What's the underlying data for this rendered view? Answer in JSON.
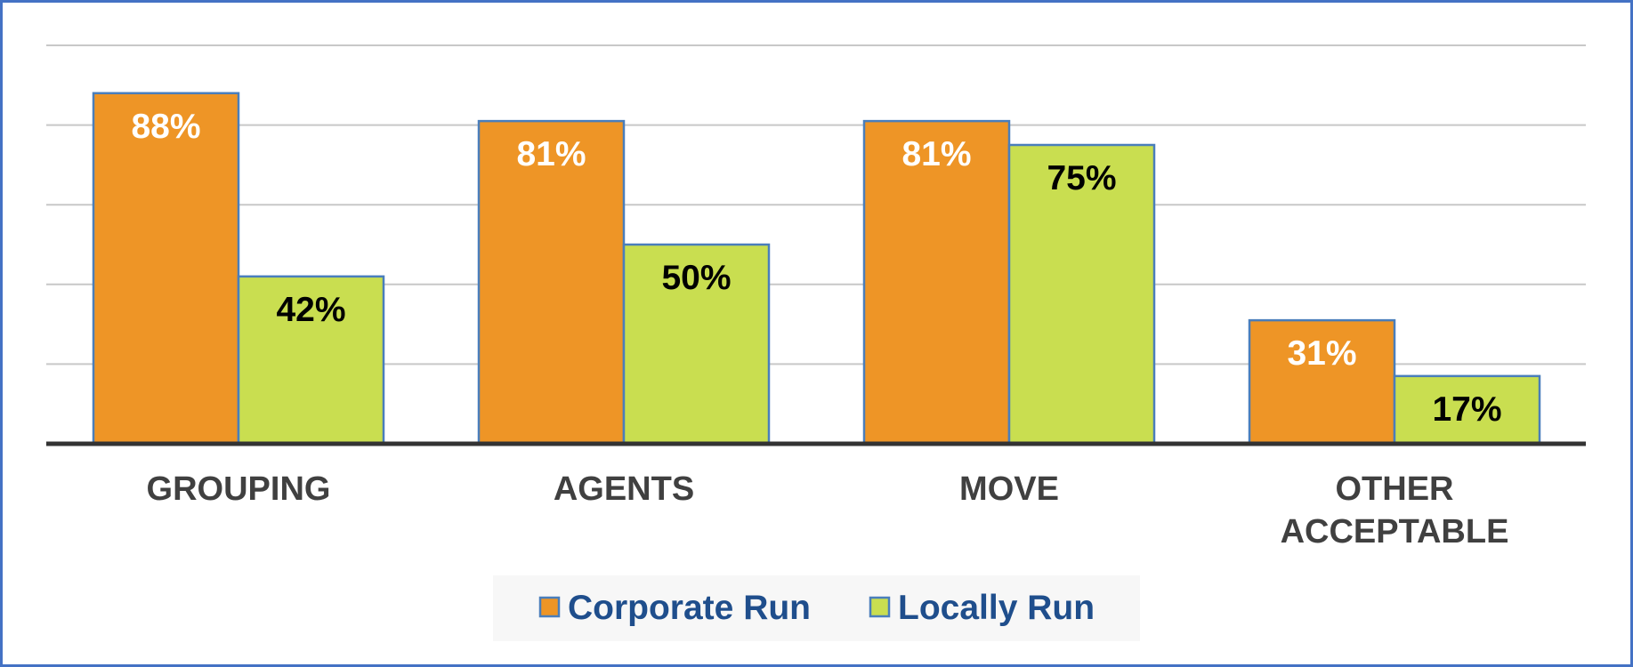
{
  "chart_data": {
    "type": "bar",
    "categories": [
      [
        "GROUPING"
      ],
      [
        "AGENTS"
      ],
      [
        "MOVE"
      ],
      [
        "OTHER",
        "ACCEPTABLE"
      ]
    ],
    "series": [
      {
        "name": "Corporate Run",
        "values": [
          88,
          81,
          81,
          31
        ],
        "labels": [
          "88%",
          "81%",
          "81%",
          "31%"
        ],
        "color": "#ee9526",
        "label_color": "#ffffff"
      },
      {
        "name": "Locally Run",
        "values": [
          42,
          50,
          75,
          17
        ],
        "labels": [
          "42%",
          "50%",
          "75%",
          "17%"
        ],
        "color": "#c9de50",
        "label_color": "#000000"
      }
    ],
    "ylim": [
      0,
      100
    ],
    "gridlines": [
      20,
      40,
      60,
      80,
      100
    ],
    "grid": true,
    "legend_position": "bottom",
    "colors": {
      "bar_border": "#4a7ebb",
      "axis": "#333333",
      "grid": "#c8c8c8",
      "legend_text": "#1f4e8c",
      "legend_bg": "#f7f7f7",
      "frame_border": "#4472c4"
    }
  }
}
